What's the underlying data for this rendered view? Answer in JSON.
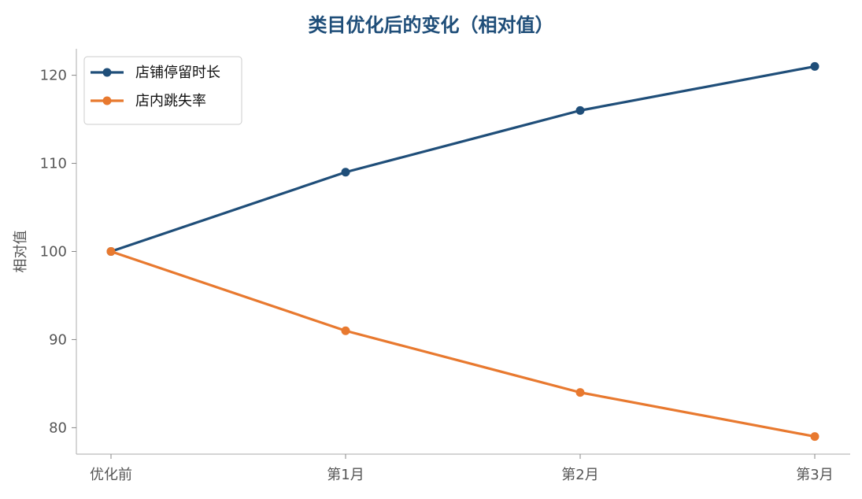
{
  "chart_data": {
    "type": "line",
    "title": "类目优化后的变化（相对值）",
    "xlabel": "",
    "ylabel": "相对值",
    "categories": [
      "优化前",
      "第1月",
      "第2月",
      "第3月"
    ],
    "ylim": [
      77,
      123
    ],
    "yticks": [
      80,
      90,
      100,
      110,
      120
    ],
    "grid": false,
    "legend_position": "top-left",
    "series": [
      {
        "name": "店铺停留时长",
        "color": "#1f4e79",
        "values": [
          100,
          109,
          116,
          121
        ]
      },
      {
        "name": "店内跳失率",
        "color": "#e8792f",
        "values": [
          100,
          91,
          84,
          79
        ]
      }
    ]
  }
}
